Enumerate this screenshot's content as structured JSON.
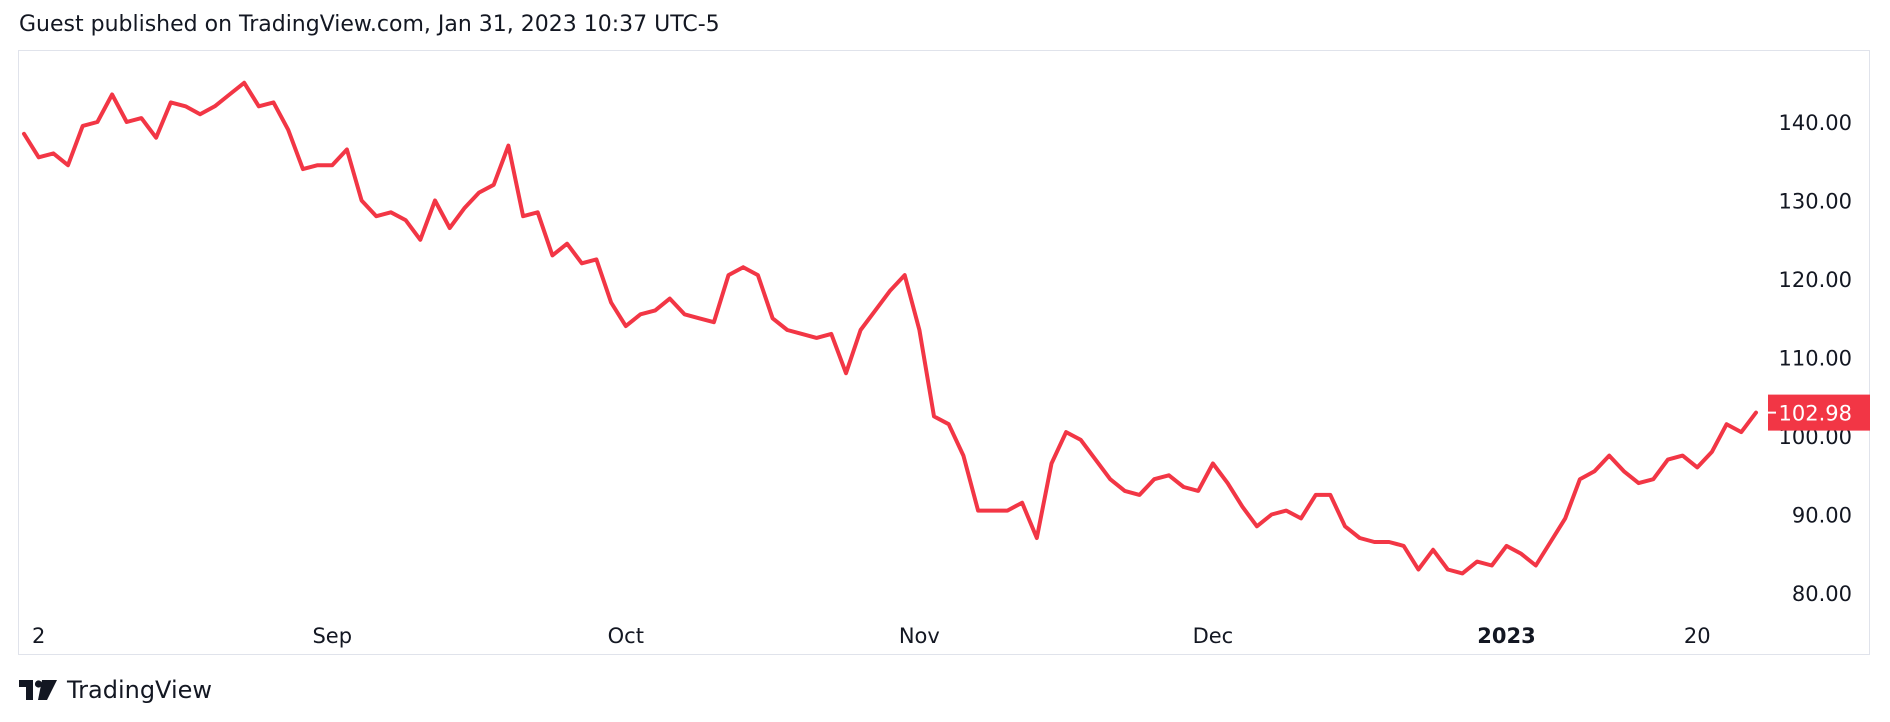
{
  "header": {
    "text": "Guest published on TradingView.com, Jan 31, 2023 10:37 UTC-5"
  },
  "footer": {
    "brand": "TradingView",
    "logo_icon": "tradingview-logo-icon"
  },
  "colors": {
    "line": "#f23645",
    "axis_text": "#131722",
    "frame": "#e0e3eb",
    "price_label_text": "#ffffff"
  },
  "chart_data": {
    "type": "line",
    "y_range": [
      75,
      148
    ],
    "y_ticks": [
      {
        "value": 140,
        "label": "140.00"
      },
      {
        "value": 130,
        "label": "130.00"
      },
      {
        "value": 120,
        "label": "120.00"
      },
      {
        "value": 110,
        "label": "110.00"
      },
      {
        "value": 100,
        "label": "100.00"
      },
      {
        "value": 90,
        "label": "90.00"
      },
      {
        "value": 80,
        "label": "80.00"
      }
    ],
    "x_ticks": [
      {
        "index": 0,
        "label": "2",
        "bold": false
      },
      {
        "index": 21,
        "label": "Sep",
        "bold": false
      },
      {
        "index": 41,
        "label": "Oct",
        "bold": false
      },
      {
        "index": 61,
        "label": "Nov",
        "bold": false
      },
      {
        "index": 81,
        "label": "Dec",
        "bold": false
      },
      {
        "index": 101,
        "label": "2023",
        "bold": true
      },
      {
        "index": 114,
        "label": "20",
        "bold": false
      }
    ],
    "last_price": {
      "value": 102.98,
      "label": "102.98"
    },
    "series": [
      {
        "values": [
          138.5,
          135.5,
          136,
          134.5,
          139.5,
          140,
          143.5,
          140,
          140.5,
          138,
          142.5,
          142,
          141,
          142,
          143.5,
          145,
          142,
          142.5,
          139,
          134,
          134.5,
          134.5,
          136.5,
          130,
          128,
          128.5,
          127.5,
          125,
          130,
          126.5,
          129,
          131,
          132,
          137,
          128,
          128.5,
          123,
          124.5,
          122,
          122.5,
          117,
          114,
          115.5,
          116,
          117.5,
          115.5,
          115,
          114.5,
          120.5,
          121.5,
          120.5,
          115,
          113.5,
          113,
          112.5,
          113,
          108,
          113.5,
          116,
          118.5,
          120.5,
          113.5,
          102.5,
          101.5,
          97.5,
          90.5,
          90.5,
          90.5,
          91.5,
          87,
          96.5,
          100.5,
          99.5,
          97,
          94.5,
          93,
          92.5,
          94.5,
          95,
          93.5,
          93,
          96.5,
          94,
          91,
          88.5,
          90,
          90.5,
          89.5,
          92.5,
          92.5,
          88.5,
          87,
          86.5,
          86.5,
          86,
          83,
          85.5,
          83,
          82.5,
          84,
          83.5,
          86,
          85,
          83.5,
          86.5,
          89.5,
          94.5,
          95.5,
          97.5,
          95.5,
          94,
          94.5,
          97,
          97.5,
          96,
          98,
          101.5,
          100.5,
          102.98
        ]
      }
    ]
  }
}
